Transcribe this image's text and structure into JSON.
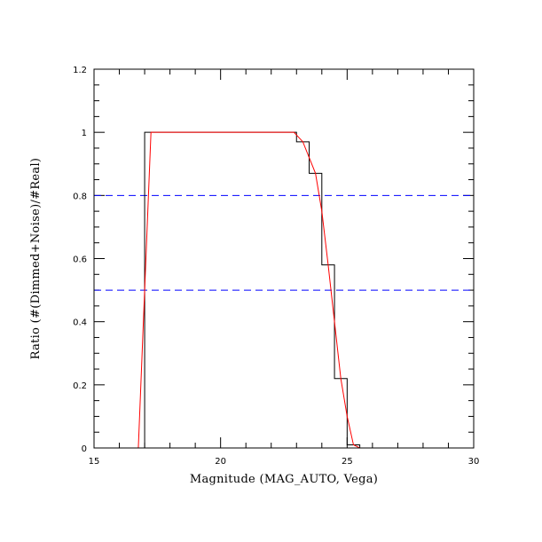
{
  "chart_data": {
    "type": "line",
    "title": "",
    "xlabel": "Magnitude (MAG_AUTO, Vega)",
    "ylabel": "Ratio (#(Dimmed+Noise)/#Real)",
    "xlim": [
      15,
      30
    ],
    "ylim": [
      0,
      1.2
    ],
    "xticks": [
      15,
      20,
      25,
      30
    ],
    "xtick_labels": [
      "15",
      "20",
      "25",
      "30"
    ],
    "yticks": [
      0,
      0.2,
      0.4,
      0.6,
      0.8,
      1,
      1.2
    ],
    "ytick_labels": [
      "0",
      "0.2",
      "0.4",
      "0.6",
      "0.8",
      "1",
      "1.2"
    ],
    "grid": false,
    "legend": "none",
    "reference_lines": [
      {
        "y": 0.8,
        "color": "#0000ff",
        "style": "dashed"
      },
      {
        "y": 0.5,
        "color": "#0000ff",
        "style": "dashed"
      }
    ],
    "series": [
      {
        "style": "step",
        "color": "#000000",
        "bin_edges": [
          16.75,
          17.0,
          17.25,
          17.5,
          17.75,
          18.0,
          18.25,
          18.5,
          18.75,
          19.0,
          19.25,
          19.5,
          19.75,
          20.0,
          20.25,
          20.5,
          20.75,
          21.0,
          21.25,
          21.5,
          21.75,
          22.0,
          22.25,
          22.5,
          22.75,
          23.0,
          23.5,
          24.0,
          24.5,
          25.0,
          25.5,
          26.0,
          26.5,
          27.0,
          27.5,
          28.0,
          28.5,
          29.0,
          29.5,
          30.0
        ],
        "values": [
          0,
          1,
          1,
          1,
          1,
          1,
          1,
          1,
          1,
          1,
          1,
          1,
          1,
          1,
          1,
          1,
          1,
          1,
          1,
          1,
          1,
          1,
          1,
          1,
          1,
          0.97,
          0.87,
          0.58,
          0.22,
          0.01,
          0,
          0,
          0,
          0,
          0,
          0,
          0,
          0,
          0
        ]
      },
      {
        "style": "line",
        "color": "#ff0000",
        "x": [
          16.75,
          17.25,
          17.5,
          18.0,
          19.0,
          20.0,
          21.0,
          22.0,
          22.9,
          23.25,
          23.75,
          24.0,
          24.25,
          24.5,
          24.75,
          25.0,
          25.25,
          25.5,
          26.0,
          27.0,
          28.0,
          29.0,
          30.0
        ],
        "y": [
          0,
          1,
          1,
          1,
          1,
          1,
          1,
          1,
          1,
          0.97,
          0.87,
          0.75,
          0.58,
          0.4,
          0.22,
          0.1,
          0.01,
          0,
          0,
          0,
          0,
          0,
          0
        ]
      }
    ]
  }
}
